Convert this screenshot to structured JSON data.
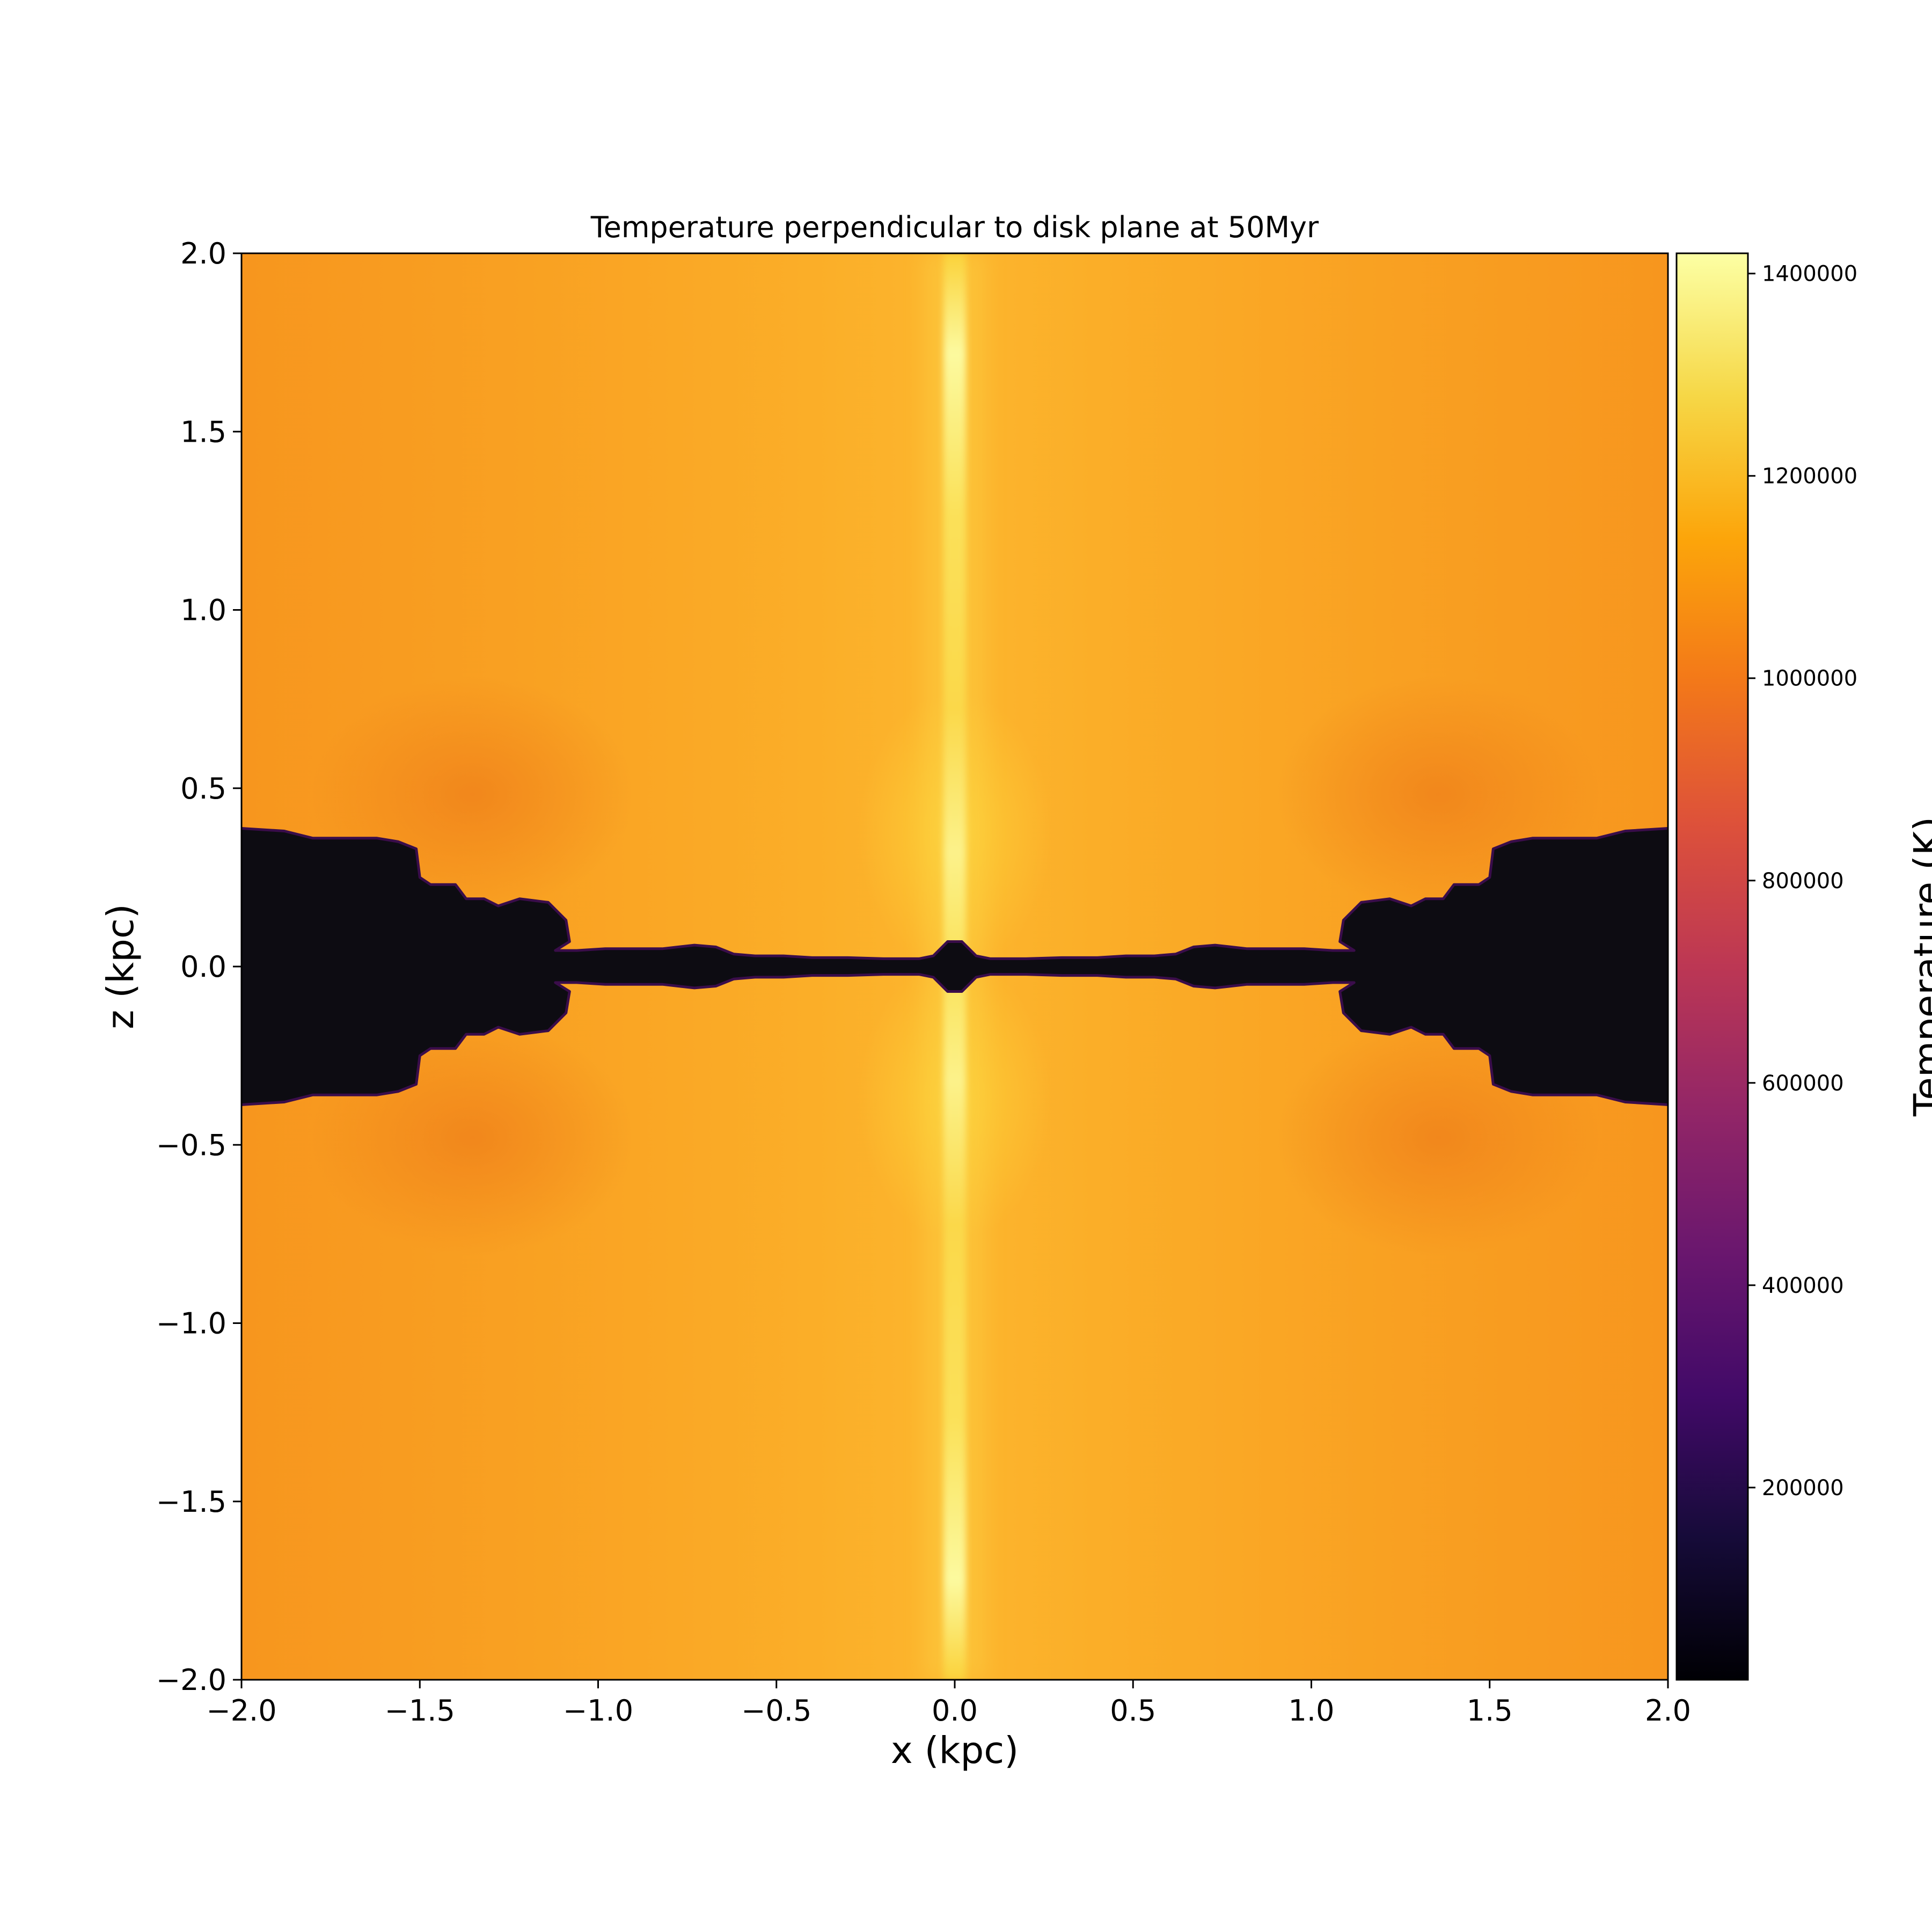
{
  "chart_data": {
    "type": "heatmap",
    "title": "Temperature perpendicular to disk plane at 50Myr",
    "xlabel": "x (kpc)",
    "ylabel": "z (kpc)",
    "xlim": [
      -2.0,
      2.0
    ],
    "ylim": [
      -2.0,
      2.0
    ],
    "x_ticks": [
      -2.0,
      -1.5,
      -1.0,
      -0.5,
      0.0,
      0.5,
      1.0,
      1.5,
      2.0
    ],
    "x_tick_labels": [
      "−2.0",
      "−1.5",
      "−1.0",
      "−0.5",
      "0.0",
      "0.5",
      "1.0",
      "1.5",
      "2.0"
    ],
    "y_ticks": [
      2.0,
      1.5,
      1.0,
      0.5,
      0.0,
      -0.5,
      -1.0,
      -1.5,
      -2.0
    ],
    "y_tick_labels": [
      "2.0",
      "1.5",
      "1.0",
      "0.5",
      "0.0",
      "−0.5",
      "−1.0",
      "−1.5",
      "−2.0"
    ],
    "grid": false,
    "colormap": "inferno",
    "colorbar": {
      "label": "Temperature (K)",
      "range": [
        10000,
        1420000
      ],
      "ticks": [
        200000,
        400000,
        600000,
        800000,
        1000000,
        1200000,
        1400000
      ],
      "tick_labels": [
        "200000",
        "400000",
        "600000",
        "800000",
        "1000000",
        "1200000",
        "1400000"
      ]
    },
    "features": {
      "background_temperature_K": 1150000,
      "jet_peak_temperature_K": 1400000,
      "jet_x_kpc": 0.0,
      "disk_temperature_K": 10000,
      "disk_outer_half_thickness_kpc": 0.38,
      "disk_inner_extent_kpc": 1.15
    }
  }
}
